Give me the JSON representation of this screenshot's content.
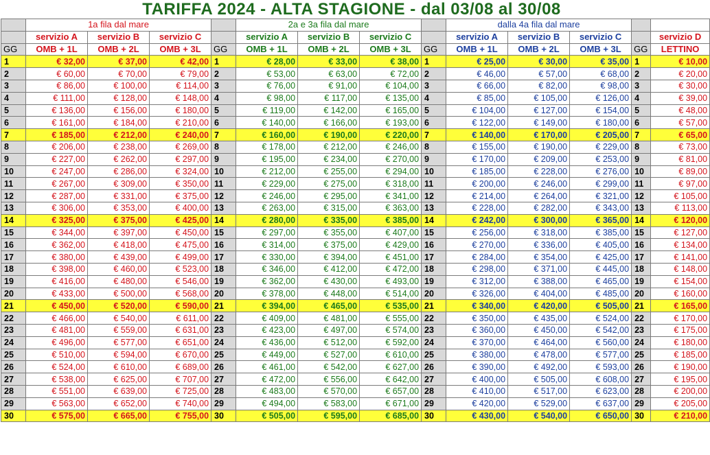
{
  "title": "TARIFFA 2024 - ALTA STAGIONE - dal 03/08 al 30/08",
  "groups": [
    {
      "label": "1a fila dal mare",
      "color": "r",
      "services": [
        "servizio A",
        "servizio B",
        "servizio C"
      ],
      "packages": [
        "OMB + 1L",
        "OMB + 2L",
        "OMB + 3L"
      ]
    },
    {
      "label": "2a e 3a fila dal mare",
      "color": "g",
      "services": [
        "servizio A",
        "servizio B",
        "servizio C"
      ],
      "packages": [
        "OMB + 1L",
        "OMB + 2L",
        "OMB + 3L"
      ]
    },
    {
      "label": "dalla 4a fila dal mare",
      "color": "b",
      "services": [
        "servizio A",
        "servizio B",
        "servizio C"
      ],
      "packages": [
        "OMB + 1L",
        "OMB + 2L",
        "OMB + 3L"
      ]
    },
    {
      "label": "",
      "color": "r",
      "services": [
        "servizio D"
      ],
      "packages": [
        "LETTINO"
      ]
    }
  ],
  "day_header": "GG",
  "highlight_days": [
    1,
    7,
    14,
    21,
    30
  ],
  "rows": [
    {
      "day": "1",
      "vals": [
        "€ 32,00",
        "€ 37,00",
        "€ 42,00",
        "€ 28,00",
        "€ 33,00",
        "€ 38,00",
        "€ 25,00",
        "€ 30,00",
        "€ 35,00",
        "€ 10,00"
      ]
    },
    {
      "day": "2",
      "vals": [
        "€ 60,00",
        "€ 70,00",
        "€ 79,00",
        "€ 53,00",
        "€ 63,00",
        "€ 72,00",
        "€ 46,00",
        "€ 57,00",
        "€ 68,00",
        "€ 20,00"
      ]
    },
    {
      "day": "3",
      "vals": [
        "€ 86,00",
        "€ 100,00",
        "€ 114,00",
        "€ 76,00",
        "€ 91,00",
        "€ 104,00",
        "€ 66,00",
        "€ 82,00",
        "€ 98,00",
        "€ 30,00"
      ]
    },
    {
      "day": "4",
      "vals": [
        "€ 111,00",
        "€ 128,00",
        "€ 148,00",
        "€ 98,00",
        "€ 117,00",
        "€ 135,00",
        "€ 85,00",
        "€ 105,00",
        "€ 126,00",
        "€ 39,00"
      ]
    },
    {
      "day": "5",
      "vals": [
        "€ 136,00",
        "€ 156,00",
        "€ 180,00",
        "€ 119,00",
        "€ 142,00",
        "€ 165,00",
        "€ 104,00",
        "€ 127,00",
        "€ 154,00",
        "€ 48,00"
      ]
    },
    {
      "day": "6",
      "vals": [
        "€ 161,00",
        "€ 184,00",
        "€ 210,00",
        "€ 140,00",
        "€ 166,00",
        "€ 193,00",
        "€ 122,00",
        "€ 149,00",
        "€ 180,00",
        "€ 57,00"
      ]
    },
    {
      "day": "7",
      "vals": [
        "€ 185,00",
        "€ 212,00",
        "€ 240,00",
        "€ 160,00",
        "€ 190,00",
        "€ 220,00",
        "€ 140,00",
        "€ 170,00",
        "€ 205,00",
        "€ 65,00"
      ]
    },
    {
      "day": "8",
      "vals": [
        "€ 206,00",
        "€ 238,00",
        "€ 269,00",
        "€ 178,00",
        "€ 212,00",
        "€ 246,00",
        "€ 155,00",
        "€ 190,00",
        "€ 229,00",
        "€ 73,00"
      ]
    },
    {
      "day": "9",
      "vals": [
        "€ 227,00",
        "€ 262,00",
        "€ 297,00",
        "€ 195,00",
        "€ 234,00",
        "€ 270,00",
        "€ 170,00",
        "€ 209,00",
        "€ 253,00",
        "€ 81,00"
      ]
    },
    {
      "day": "10",
      "vals": [
        "€ 247,00",
        "€ 286,00",
        "€ 324,00",
        "€ 212,00",
        "€ 255,00",
        "€ 294,00",
        "€ 185,00",
        "€ 228,00",
        "€ 276,00",
        "€ 89,00"
      ]
    },
    {
      "day": "11",
      "vals": [
        "€ 267,00",
        "€ 309,00",
        "€ 350,00",
        "€ 229,00",
        "€ 275,00",
        "€ 318,00",
        "€ 200,00",
        "€ 246,00",
        "€ 299,00",
        "€ 97,00"
      ]
    },
    {
      "day": "12",
      "vals": [
        "€ 287,00",
        "€ 331,00",
        "€ 375,00",
        "€ 246,00",
        "€ 295,00",
        "€ 341,00",
        "€ 214,00",
        "€ 264,00",
        "€ 321,00",
        "€ 105,00"
      ]
    },
    {
      "day": "13",
      "vals": [
        "€ 306,00",
        "€ 353,00",
        "€ 400,00",
        "€ 263,00",
        "€ 315,00",
        "€ 363,00",
        "€ 228,00",
        "€ 282,00",
        "€ 343,00",
        "€ 113,00"
      ]
    },
    {
      "day": "14",
      "vals": [
        "€ 325,00",
        "€ 375,00",
        "€ 425,00",
        "€ 280,00",
        "€ 335,00",
        "€ 385,00",
        "€ 242,00",
        "€ 300,00",
        "€ 365,00",
        "€ 120,00"
      ]
    },
    {
      "day": "15",
      "vals": [
        "€ 344,00",
        "€ 397,00",
        "€ 450,00",
        "€ 297,00",
        "€ 355,00",
        "€ 407,00",
        "€ 256,00",
        "€ 318,00",
        "€ 385,00",
        "€ 127,00"
      ]
    },
    {
      "day": "16",
      "vals": [
        "€ 362,00",
        "€ 418,00",
        "€ 475,00",
        "€ 314,00",
        "€ 375,00",
        "€ 429,00",
        "€ 270,00",
        "€ 336,00",
        "€ 405,00",
        "€ 134,00"
      ]
    },
    {
      "day": "17",
      "vals": [
        "€ 380,00",
        "€ 439,00",
        "€ 499,00",
        "€ 330,00",
        "€ 394,00",
        "€ 451,00",
        "€ 284,00",
        "€ 354,00",
        "€ 425,00",
        "€ 141,00"
      ]
    },
    {
      "day": "18",
      "vals": [
        "€ 398,00",
        "€ 460,00",
        "€ 523,00",
        "€ 346,00",
        "€ 412,00",
        "€ 472,00",
        "€ 298,00",
        "€ 371,00",
        "€ 445,00",
        "€ 148,00"
      ]
    },
    {
      "day": "19",
      "vals": [
        "€ 416,00",
        "€ 480,00",
        "€ 546,00",
        "€ 362,00",
        "€ 430,00",
        "€ 493,00",
        "€ 312,00",
        "€ 388,00",
        "€ 465,00",
        "€ 154,00"
      ]
    },
    {
      "day": "20",
      "vals": [
        "€ 433,00",
        "€ 500,00",
        "€ 568,00",
        "€ 378,00",
        "€ 448,00",
        "€ 514,00",
        "€ 326,00",
        "€ 404,00",
        "€ 485,00",
        "€ 160,00"
      ]
    },
    {
      "day": "21",
      "vals": [
        "€ 450,00",
        "€ 520,00",
        "€ 590,00",
        "€ 394,00",
        "€ 465,00",
        "€ 535,00",
        "€ 340,00",
        "€ 420,00",
        "€ 505,00",
        "€ 165,00"
      ]
    },
    {
      "day": "22",
      "vals": [
        "€ 466,00",
        "€ 540,00",
        "€ 611,00",
        "€ 409,00",
        "€ 481,00",
        "€ 555,00",
        "€ 350,00",
        "€ 435,00",
        "€ 524,00",
        "€ 170,00"
      ]
    },
    {
      "day": "23",
      "vals": [
        "€ 481,00",
        "€ 559,00",
        "€ 631,00",
        "€ 423,00",
        "€ 497,00",
        "€ 574,00",
        "€ 360,00",
        "€ 450,00",
        "€ 542,00",
        "€ 175,00"
      ]
    },
    {
      "day": "24",
      "vals": [
        "€ 496,00",
        "€ 577,00",
        "€ 651,00",
        "€ 436,00",
        "€ 512,00",
        "€ 592,00",
        "€ 370,00",
        "€ 464,00",
        "€ 560,00",
        "€ 180,00"
      ]
    },
    {
      "day": "25",
      "vals": [
        "€ 510,00",
        "€ 594,00",
        "€ 670,00",
        "€ 449,00",
        "€ 527,00",
        "€ 610,00",
        "€ 380,00",
        "€ 478,00",
        "€ 577,00",
        "€ 185,00"
      ]
    },
    {
      "day": "26",
      "vals": [
        "€ 524,00",
        "€ 610,00",
        "€ 689,00",
        "€ 461,00",
        "€ 542,00",
        "€ 627,00",
        "€ 390,00",
        "€ 492,00",
        "€ 593,00",
        "€ 190,00"
      ]
    },
    {
      "day": "27",
      "vals": [
        "€ 538,00",
        "€ 625,00",
        "€ 707,00",
        "€ 472,00",
        "€ 556,00",
        "€ 642,00",
        "€ 400,00",
        "€ 505,00",
        "€ 608,00",
        "€ 195,00"
      ]
    },
    {
      "day": "28",
      "vals": [
        "€ 551,00",
        "€ 639,00",
        "€ 725,00",
        "€ 483,00",
        "€ 570,00",
        "€ 657,00",
        "€ 410,00",
        "€ 517,00",
        "€ 623,00",
        "€ 200,00"
      ]
    },
    {
      "day": "29",
      "vals": [
        "€ 563,00",
        "€ 652,00",
        "€ 740,00",
        "€ 494,00",
        "€ 583,00",
        "€ 671,00",
        "€ 420,00",
        "€ 529,00",
        "€ 637,00",
        "€ 205,00"
      ]
    },
    {
      "day": "30",
      "vals": [
        "€ 575,00",
        "€ 665,00",
        "€ 755,00",
        "€ 505,00",
        "€ 595,00",
        "€ 685,00",
        "€ 430,00",
        "€ 540,00",
        "€ 650,00",
        "€ 210,00"
      ]
    }
  ]
}
